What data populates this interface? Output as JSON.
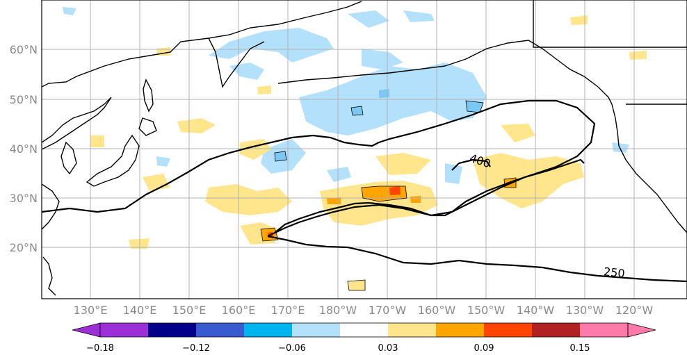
{
  "map": {
    "lat_labels": [
      "60°N",
      "50°N",
      "40°N",
      "30°N",
      "20°N"
    ],
    "lon_labels": [
      "130°E",
      "140°E",
      "150°E",
      "160°E",
      "170°E",
      "180°W",
      "170°W",
      "160°W",
      "150°W",
      "140°W",
      "130°W",
      "120°W"
    ],
    "contours": [
      {
        "value": 400,
        "label": "400"
      },
      {
        "value": 250,
        "label": "250"
      }
    ]
  },
  "colorbar": {
    "colors": [
      "#9b30d9",
      "#00008b",
      "#3a5bd0",
      "#00b4f0",
      "#b3e0fb",
      "#ffffff",
      "#ffe68c",
      "#ffa500",
      "#ff4500",
      "#b22222",
      "#ff7aa8"
    ],
    "tick_labels": [
      "−0.18",
      "−0.12",
      "−0.06",
      "0.03",
      "0.09",
      "0.15"
    ]
  },
  "fill_colors": {
    "light_blue": "#b3e0fb",
    "blue": "#7cc8f4",
    "yellow": "#ffe68c",
    "orange": "#ffa500",
    "red": "#ff4500"
  }
}
